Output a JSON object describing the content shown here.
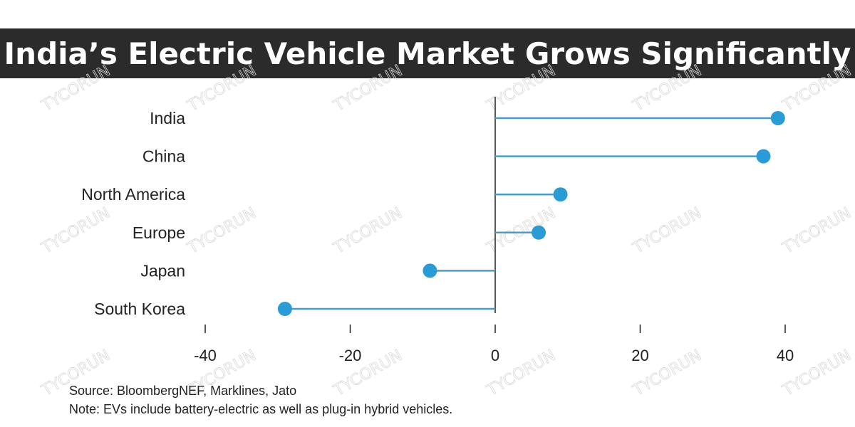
{
  "banner": {
    "title": "India’s Electric Vehicle Market Grows Significantly",
    "background": "#2b2b2b",
    "text_color": "#ffffff"
  },
  "chart_data": {
    "type": "lollipop",
    "categories": [
      "India",
      "China",
      "North America",
      "Europe",
      "Japan",
      "South Korea"
    ],
    "values": [
      39,
      37,
      9,
      6,
      -9,
      -29
    ],
    "xlim": [
      -40,
      40
    ],
    "xticks": [
      -40,
      -20,
      0,
      20,
      40
    ],
    "orientation": "horizontal",
    "title": "",
    "xlabel": "",
    "ylabel": "",
    "grid": false,
    "color": "#2b9bd6",
    "line_color": "#4a9cc8"
  },
  "footer": {
    "source": "Source: BloombergNEF, Marklines, Jato",
    "note": "Note: EVs include battery-electric as well as plug-in hybrid vehicles."
  },
  "watermark": {
    "text": "TYCORUN"
  }
}
